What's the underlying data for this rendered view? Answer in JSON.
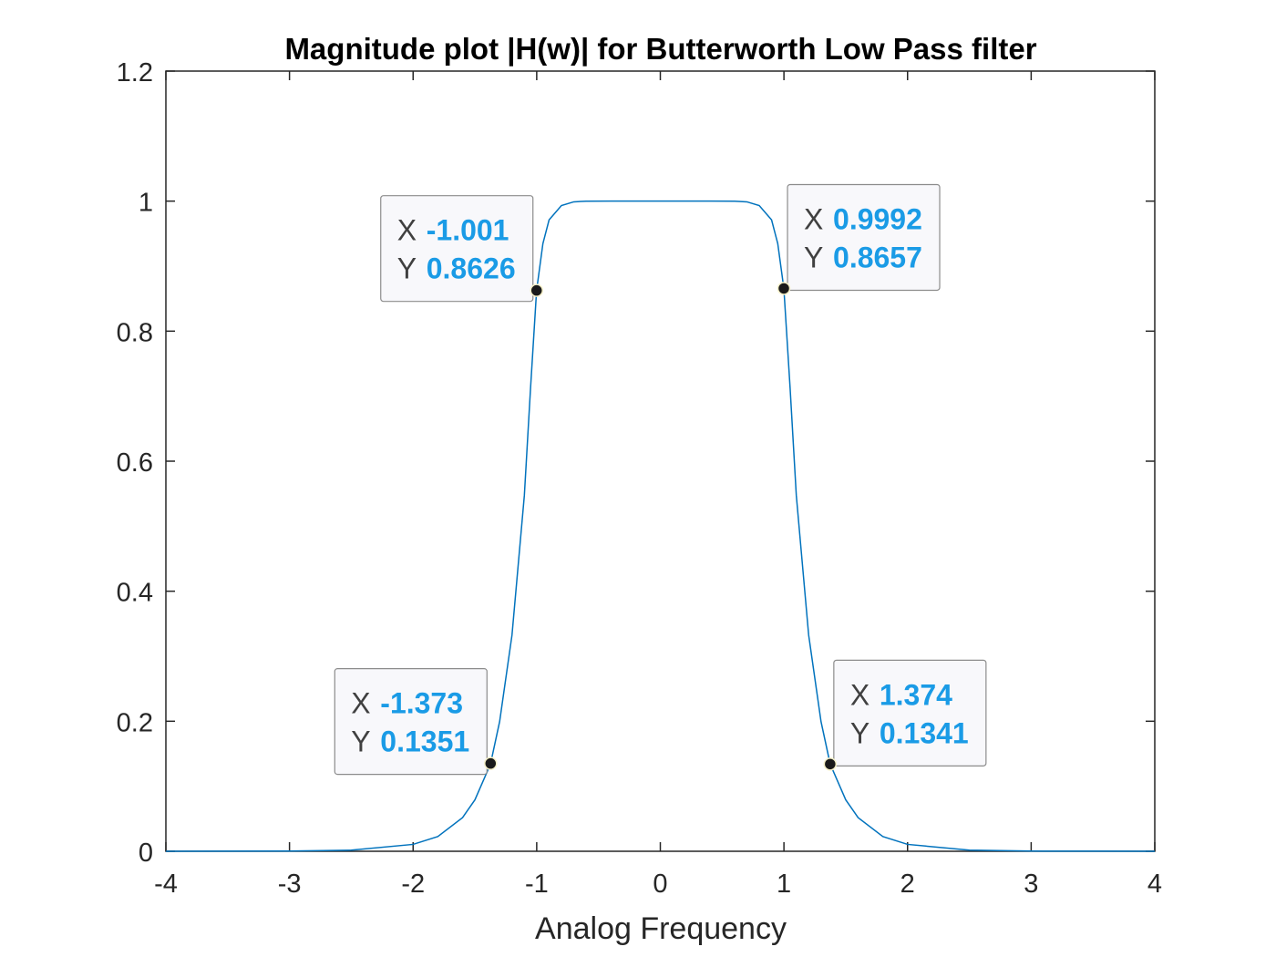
{
  "chart_data": {
    "type": "line",
    "title": "Magnitude plot |H(w)| for Butterworth Low Pass filter",
    "xlabel": "Analog Frequency",
    "ylabel": "",
    "xlim": [
      -4,
      4
    ],
    "ylim": [
      0,
      1.2
    ],
    "xticks": [
      "-4",
      "-3",
      "-2",
      "-1",
      "0",
      "1",
      "2",
      "3",
      "4"
    ],
    "yticks": [
      "0",
      "0.2",
      "0.4",
      "0.6",
      "0.8",
      "1",
      "1.2"
    ],
    "grid": false,
    "legend": "none",
    "line_color": "#0072BD",
    "datatip_value_color": "#1a9be6",
    "x": [
      -4,
      -3.5,
      -3,
      -2.5,
      -2,
      -1.8,
      -1.6,
      -1.5,
      -1.4,
      -1.373,
      -1.3,
      -1.2,
      -1.1,
      -1.05,
      -1.001,
      -0.95,
      -0.9,
      -0.8,
      -0.7,
      -0.6,
      -0.4,
      -0.2,
      0,
      0.2,
      0.4,
      0.6,
      0.7,
      0.8,
      0.9,
      0.95,
      0.9992,
      1.05,
      1.1,
      1.2,
      1.3,
      1.374,
      1.4,
      1.5,
      1.6,
      1.8,
      2,
      2.5,
      3,
      3.5,
      4
    ],
    "y": [
      0,
      0.0001,
      0.0003,
      0.0017,
      0.0106,
      0.0227,
      0.0518,
      0.0791,
      0.1228,
      0.1351,
      0.1995,
      0.3325,
      0.5473,
      0.7121,
      0.8626,
      0.9347,
      0.9711,
      0.9932,
      0.9989,
      0.9999,
      1,
      1,
      1,
      1,
      1,
      0.9999,
      0.9989,
      0.9932,
      0.9711,
      0.9347,
      0.8657,
      0.7121,
      0.5473,
      0.3325,
      0.1995,
      0.1341,
      0.1228,
      0.0791,
      0.0518,
      0.0227,
      0.0106,
      0.0017,
      0.0003,
      0.0001,
      0
    ],
    "datatips": [
      {
        "x_label": "X",
        "y_label": "Y",
        "x": "-1.001",
        "y": "0.8626",
        "px": -1.001,
        "py": 0.8626,
        "side": "left"
      },
      {
        "x_label": "X",
        "y_label": "Y",
        "x": "0.9992",
        "y": "0.8657",
        "px": 0.9992,
        "py": 0.8657,
        "side": "right"
      },
      {
        "x_label": "X",
        "y_label": "Y",
        "x": "-1.373",
        "y": "0.1351",
        "px": -1.373,
        "py": 0.1351,
        "side": "left"
      },
      {
        "x_label": "X",
        "y_label": "Y",
        "x": "1.374",
        "y": "0.1341",
        "px": 1.374,
        "py": 0.1341,
        "side": "right"
      }
    ]
  }
}
